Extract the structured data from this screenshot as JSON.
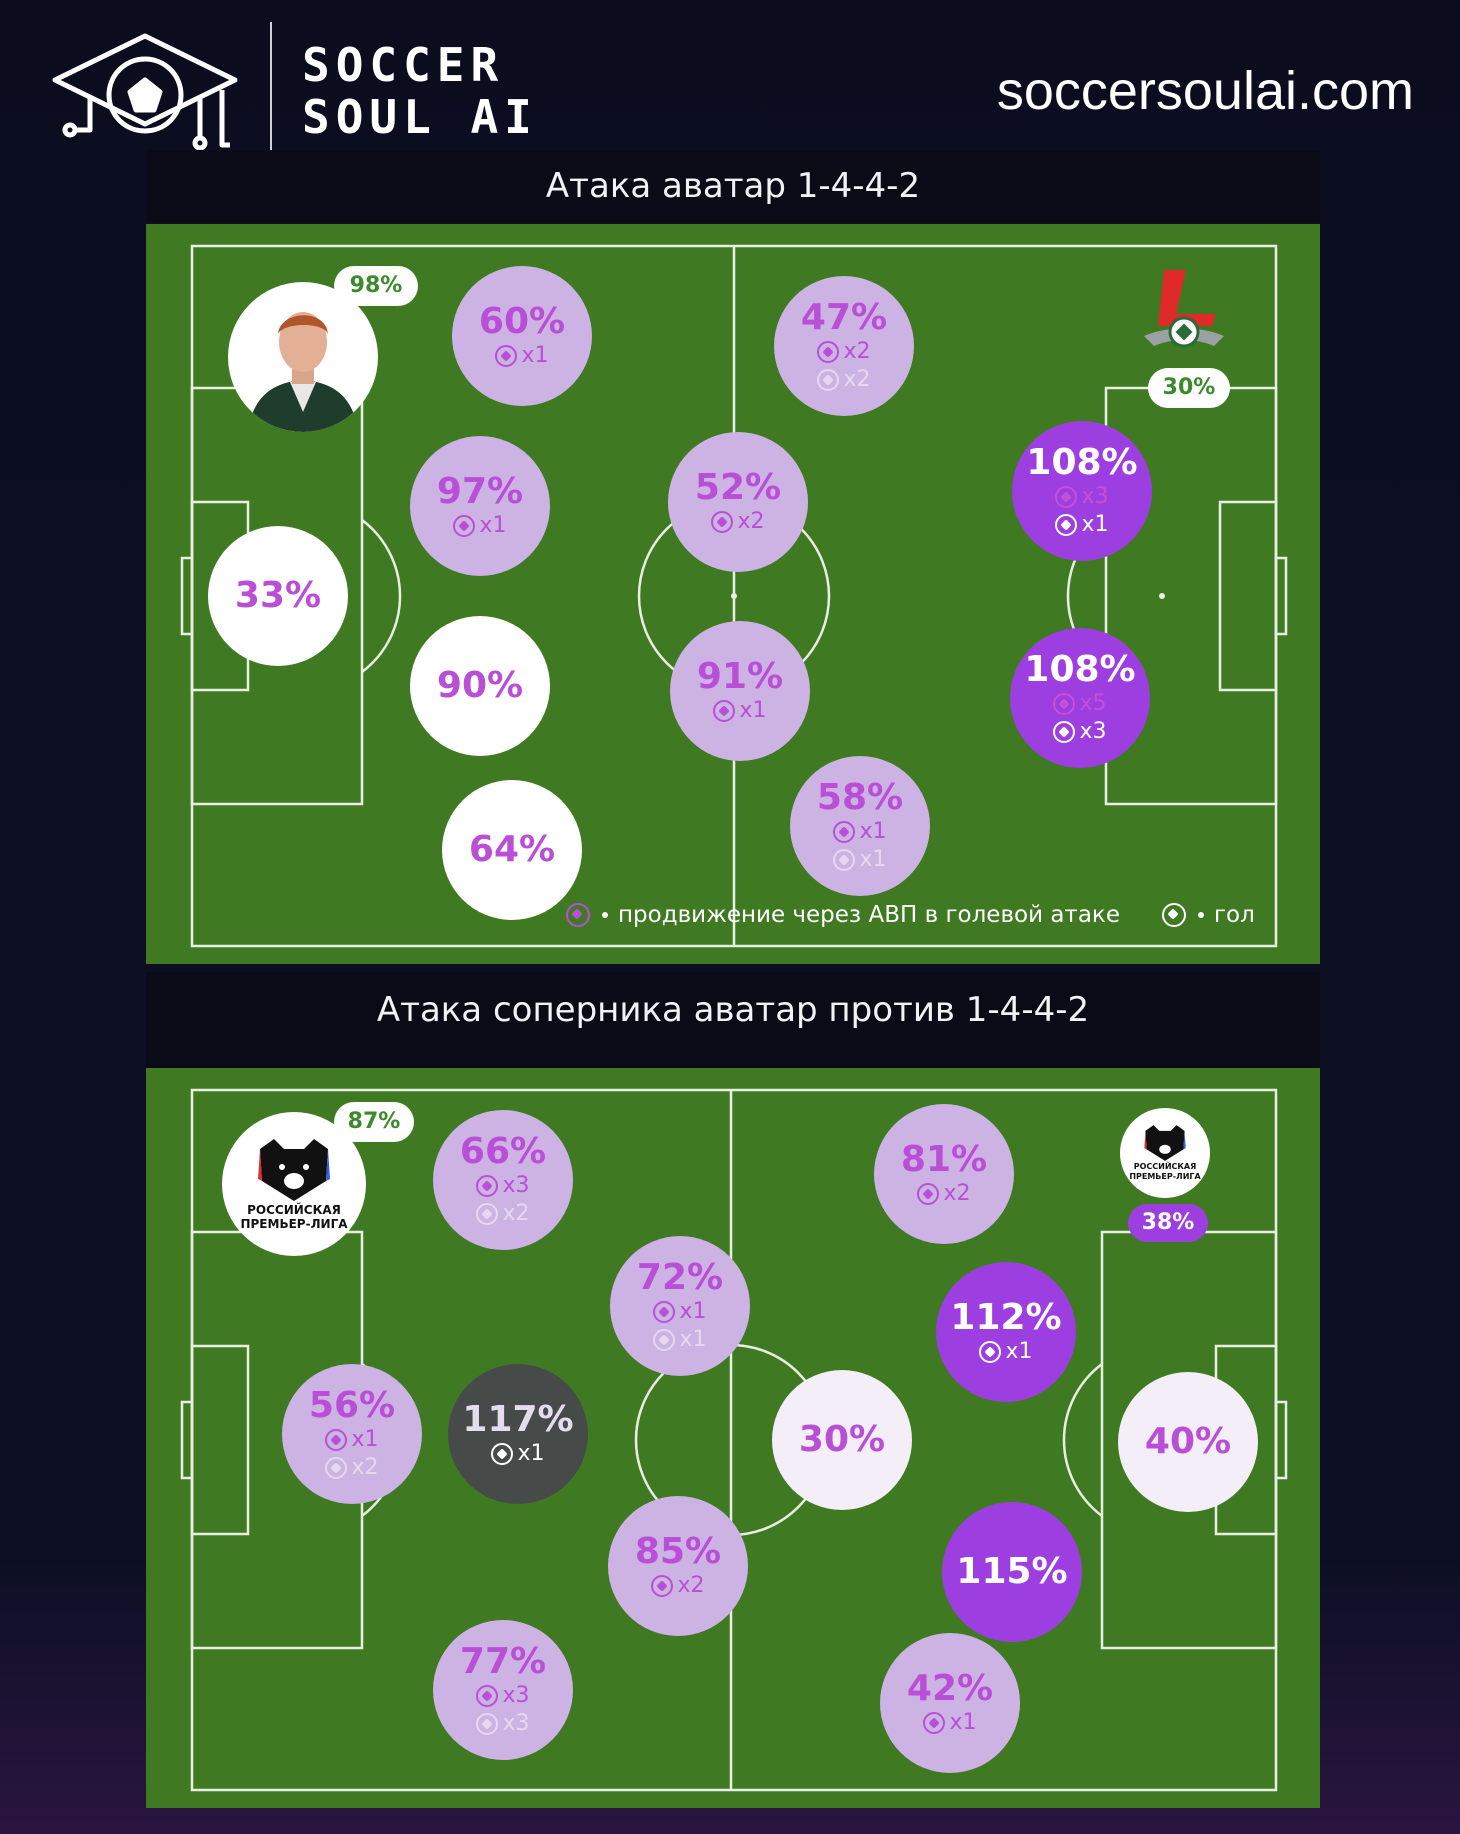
{
  "brand": {
    "line1": "SOCCER",
    "line2": "SOUL AI",
    "site": "soccersoulai.com"
  },
  "sections": [
    {
      "title": "Атака аватар 1-4-4-2",
      "left_badge": "98%",
      "right_badge": "30%",
      "circles": [
        {
          "pct": "60%",
          "lines": [
            {
              "icon": "ball-purple",
              "text": "x1"
            }
          ]
        },
        {
          "pct": "47%",
          "lines": [
            {
              "icon": "ball-purple",
              "text": "x2"
            },
            {
              "icon": "ball-faint",
              "text": "x2"
            }
          ]
        },
        {
          "pct": "97%",
          "lines": [
            {
              "icon": "ball-purple",
              "text": "x1"
            }
          ]
        },
        {
          "pct": "52%",
          "lines": [
            {
              "icon": "ball-purple",
              "text": "x2"
            }
          ]
        },
        {
          "pct": "108%",
          "lines": [
            {
              "icon": "ball-purple",
              "text": "x3"
            },
            {
              "icon": "ball-white",
              "text": "x1"
            }
          ]
        },
        {
          "pct": "33%",
          "lines": []
        },
        {
          "pct": "90%",
          "lines": []
        },
        {
          "pct": "91%",
          "lines": [
            {
              "icon": "ball-purple",
              "text": "x1"
            }
          ]
        },
        {
          "pct": "108%",
          "lines": [
            {
              "icon": "ball-purple",
              "text": "x5"
            },
            {
              "icon": "ball-white",
              "text": "x3"
            }
          ]
        },
        {
          "pct": "64%",
          "lines": []
        },
        {
          "pct": "58%",
          "lines": [
            {
              "icon": "ball-purple",
              "text": "x1"
            },
            {
              "icon": "ball-faint",
              "text": "x1"
            }
          ]
        }
      ],
      "legend": {
        "advance": "продвижение через АВП в голевой атаке",
        "goal": "гол"
      }
    },
    {
      "title": "Атака соперника аватар против 1-4-4-2",
      "left_badge": "87%",
      "right_badge": "38%",
      "logo_text_1": "РОССИЙСКАЯ",
      "logo_text_2": "ПРЕМЬЕР-ЛИГА",
      "circles": [
        {
          "pct": "66%",
          "lines": [
            {
              "icon": "ball-purple",
              "text": "x3"
            },
            {
              "icon": "ball-faint",
              "text": "x2"
            }
          ]
        },
        {
          "pct": "81%",
          "lines": [
            {
              "icon": "ball-purple",
              "text": "x2"
            }
          ]
        },
        {
          "pct": "72%",
          "lines": [
            {
              "icon": "ball-purple",
              "text": "x1"
            },
            {
              "icon": "ball-faint",
              "text": "x1"
            }
          ]
        },
        {
          "pct": "112%",
          "lines": [
            {
              "icon": "ball-white",
              "text": "x1"
            }
          ]
        },
        {
          "pct": "56%",
          "lines": [
            {
              "icon": "ball-purple",
              "text": "x1"
            },
            {
              "icon": "ball-faint",
              "text": "x2"
            }
          ]
        },
        {
          "pct": "117%",
          "lines": [
            {
              "icon": "ball-white",
              "text": "x1"
            }
          ]
        },
        {
          "pct": "30%",
          "lines": []
        },
        {
          "pct": "40%",
          "lines": []
        },
        {
          "pct": "85%",
          "lines": [
            {
              "icon": "ball-purple",
              "text": "x2"
            }
          ]
        },
        {
          "pct": "115%",
          "lines": []
        },
        {
          "pct": "77%",
          "lines": [
            {
              "icon": "ball-purple",
              "text": "x3"
            },
            {
              "icon": "ball-faint",
              "text": "x3"
            }
          ]
        },
        {
          "pct": "42%",
          "lines": [
            {
              "icon": "ball-purple",
              "text": "x1"
            }
          ]
        }
      ]
    }
  ],
  "colors": {
    "pitch": "#3f7a23",
    "lilac": "#cdb3e3",
    "white": "#ffffff",
    "light": "#f3eef8",
    "violet": "#9d3fe0",
    "dark": "#464b4a",
    "text_purple": "#b84fd6"
  }
}
